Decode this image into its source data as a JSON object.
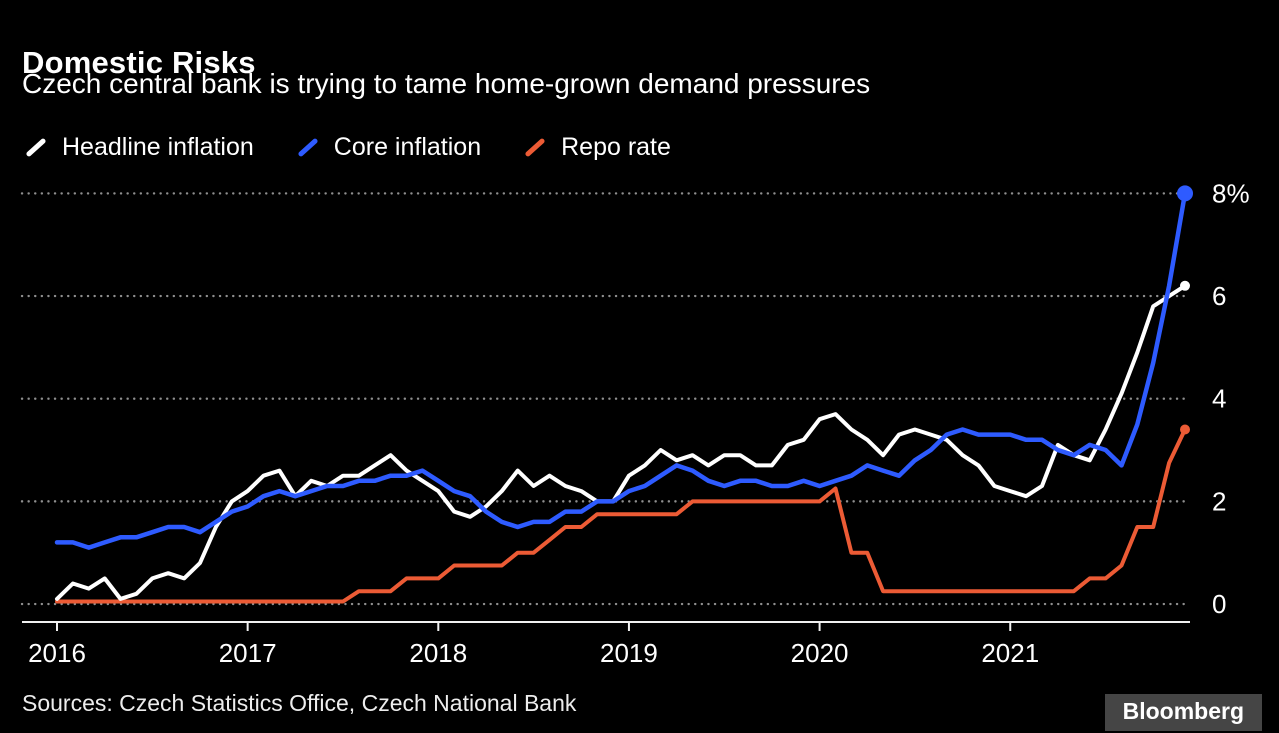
{
  "header": {
    "title": "Domestic Risks",
    "subtitle": "Czech central bank is trying to tame home-grown demand pressures"
  },
  "footer": {
    "sources": "Sources: Czech Statistics Office, Czech National Bank",
    "logo_text": "Bloomberg"
  },
  "chart_data": {
    "type": "line",
    "x_start": "2016-01",
    "x_end": "2021-12",
    "x_frequency": "monthly",
    "unit": "%",
    "grid": "horizontal-dotted",
    "legend_position": "top-left",
    "background": "#000000",
    "ylim": [
      -0.35,
      8.3
    ],
    "yticks": [
      {
        "value": 0,
        "label": "0"
      },
      {
        "value": 2,
        "label": "2"
      },
      {
        "value": 4,
        "label": "4"
      },
      {
        "value": 6,
        "label": "6"
      },
      {
        "value": 8,
        "label": "8%"
      }
    ],
    "x_ticks": [
      {
        "index": 0,
        "label": "2016"
      },
      {
        "index": 12,
        "label": "2017"
      },
      {
        "index": 24,
        "label": "2018"
      },
      {
        "index": 36,
        "label": "2019"
      },
      {
        "index": 48,
        "label": "2020"
      },
      {
        "index": 60,
        "label": "2021"
      }
    ],
    "series": [
      {
        "name": "Headline inflation",
        "color": "#ffffff",
        "values": [
          0.1,
          0.4,
          0.3,
          0.5,
          0.1,
          0.2,
          0.5,
          0.6,
          0.5,
          0.8,
          1.5,
          2.0,
          2.2,
          2.5,
          2.6,
          2.1,
          2.4,
          2.3,
          2.5,
          2.5,
          2.7,
          2.9,
          2.6,
          2.4,
          2.2,
          1.8,
          1.7,
          1.9,
          2.2,
          2.6,
          2.3,
          2.5,
          2.3,
          2.2,
          2.0,
          2.0,
          2.5,
          2.7,
          3.0,
          2.8,
          2.9,
          2.7,
          2.9,
          2.9,
          2.7,
          2.7,
          3.1,
          3.2,
          3.6,
          3.7,
          3.4,
          3.2,
          2.9,
          3.3,
          3.4,
          3.3,
          3.2,
          2.9,
          2.7,
          2.3,
          2.2,
          2.1,
          2.3,
          3.1,
          2.9,
          2.8,
          3.4,
          4.1,
          4.9,
          5.8,
          6.0,
          6.2
        ]
      },
      {
        "name": "Core inflation",
        "color": "#2e5bff",
        "values": [
          1.2,
          1.2,
          1.1,
          1.2,
          1.3,
          1.3,
          1.4,
          1.5,
          1.5,
          1.4,
          1.6,
          1.8,
          1.9,
          2.1,
          2.2,
          2.1,
          2.2,
          2.3,
          2.3,
          2.4,
          2.4,
          2.5,
          2.5,
          2.6,
          2.4,
          2.2,
          2.1,
          1.8,
          1.6,
          1.5,
          1.6,
          1.6,
          1.8,
          1.8,
          2.0,
          2.0,
          2.2,
          2.3,
          2.5,
          2.7,
          2.6,
          2.4,
          2.3,
          2.4,
          2.4,
          2.3,
          2.3,
          2.4,
          2.3,
          2.4,
          2.5,
          2.7,
          2.6,
          2.5,
          2.8,
          3.0,
          3.3,
          3.4,
          3.3,
          3.3,
          3.3,
          3.2,
          3.2,
          3.0,
          2.9,
          3.1,
          3.0,
          2.7,
          3.5,
          4.7,
          6.2,
          8.0
        ]
      },
      {
        "name": "Repo rate",
        "color": "#ec5b35",
        "values": [
          0.05,
          0.05,
          0.05,
          0.05,
          0.05,
          0.05,
          0.05,
          0.05,
          0.05,
          0.05,
          0.05,
          0.05,
          0.05,
          0.05,
          0.05,
          0.05,
          0.05,
          0.05,
          0.05,
          0.25,
          0.25,
          0.25,
          0.5,
          0.5,
          0.5,
          0.75,
          0.75,
          0.75,
          0.75,
          1.0,
          1.0,
          1.25,
          1.5,
          1.5,
          1.75,
          1.75,
          1.75,
          1.75,
          1.75,
          1.75,
          2.0,
          2.0,
          2.0,
          2.0,
          2.0,
          2.0,
          2.0,
          2.0,
          2.0,
          2.25,
          1.0,
          1.0,
          0.25,
          0.25,
          0.25,
          0.25,
          0.25,
          0.25,
          0.25,
          0.25,
          0.25,
          0.25,
          0.25,
          0.25,
          0.25,
          0.5,
          0.5,
          0.75,
          1.5,
          1.5,
          2.75,
          3.4
        ]
      }
    ]
  }
}
